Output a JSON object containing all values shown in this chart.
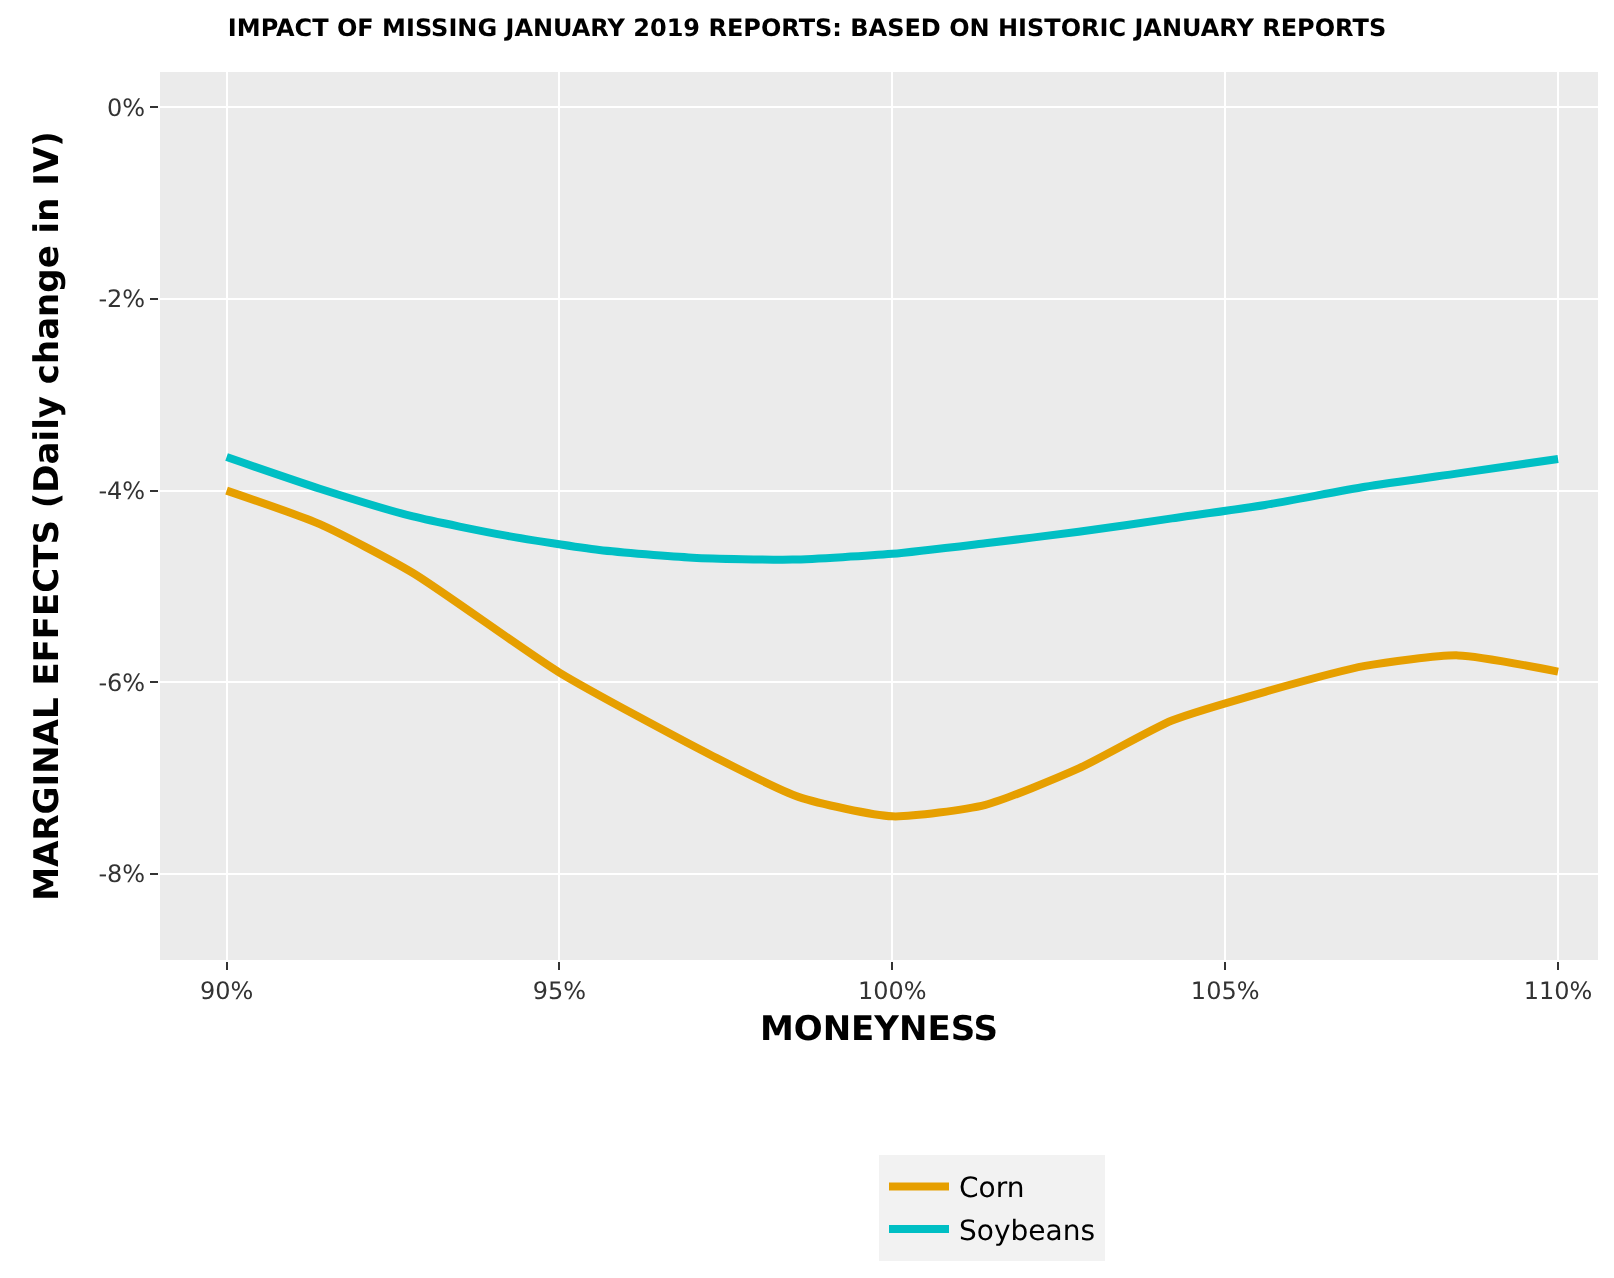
{
  "chart_data": {
    "type": "line",
    "title": "IMPACT OF MISSING JANUARY 2019 REPORTS: BASED ON HISTORIC JANUARY REPORTS",
    "xlabel": "MONEYNESS",
    "ylabel": "MARGINAL EFFECTS (Daily change in IV)",
    "series": [
      {
        "name": "Corn",
        "color": "#e69f00",
        "x": [
          90,
          91.4,
          92.8,
          95,
          97.3,
          98.6,
          100,
          101.4,
          102.8,
          104.2,
          105.6,
          107.1,
          108.5,
          110
        ],
        "values": [
          -4.0,
          -4.35,
          -4.86,
          -5.9,
          -6.77,
          -7.2,
          -7.4,
          -7.28,
          -6.9,
          -6.4,
          -6.1,
          -5.83,
          -5.72,
          -5.89
        ]
      },
      {
        "name": "Soybeans",
        "color": "#00bfc4",
        "x": [
          90,
          91.4,
          92.8,
          94.2,
          95.6,
          97,
          98.5,
          100,
          101.4,
          102.8,
          104.2,
          105.6,
          107.1,
          108.5,
          110
        ],
        "values": [
          -3.65,
          -3.98,
          -4.27,
          -4.47,
          -4.62,
          -4.7,
          -4.72,
          -4.66,
          -4.55,
          -4.43,
          -4.29,
          -4.15,
          -3.96,
          -3.82,
          -3.67
        ]
      }
    ],
    "xlim": [
      89,
      110.6
    ],
    "xticks": [
      {
        "value": 90,
        "label": "90%"
      },
      {
        "value": 95,
        "label": "95%"
      },
      {
        "value": 100,
        "label": "100%"
      },
      {
        "value": 105,
        "label": "105%"
      },
      {
        "value": 110,
        "label": "110%"
      }
    ],
    "ylim": [
      -8.9,
      0.37
    ],
    "yticks": [
      {
        "value": 0,
        "label": "0%"
      },
      {
        "value": -2,
        "label": "-2%"
      },
      {
        "value": -4,
        "label": "-4%"
      },
      {
        "value": -6,
        "label": "-6%"
      },
      {
        "value": -8,
        "label": "-8%"
      }
    ],
    "grid": true,
    "legend": "bottom",
    "marker": "none",
    "line_style": "solid"
  }
}
